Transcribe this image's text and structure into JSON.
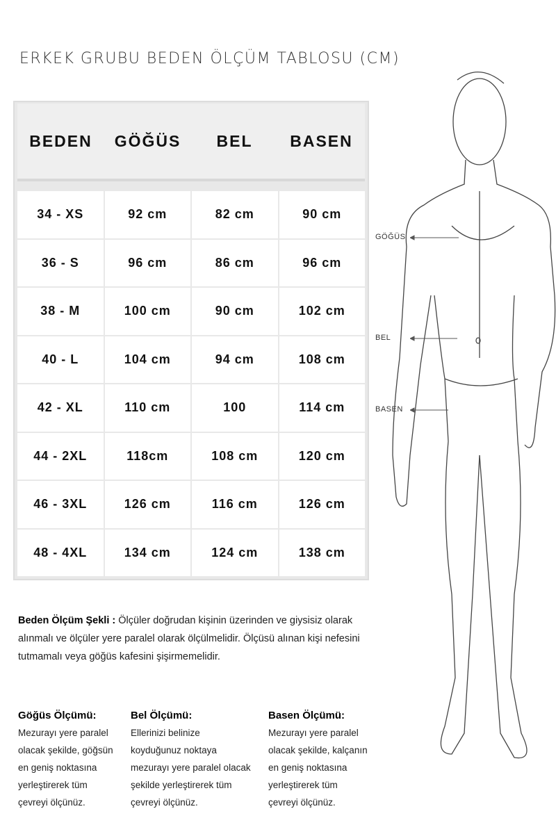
{
  "title": "ERKEK GRUBU BEDEN ÖLÇÜM TABLOSU (CM)",
  "table": {
    "headers": [
      "BEDEN",
      "GÖĞÜS",
      "BEL",
      "BASEN"
    ],
    "rows": [
      [
        "34 - XS",
        "92 cm",
        "82 cm",
        "90 cm"
      ],
      [
        "36 - S",
        "96 cm",
        "86 cm",
        "96 cm"
      ],
      [
        "38 - M",
        "100 cm",
        "90 cm",
        "102 cm"
      ],
      [
        "40 - L",
        "104 cm",
        "94 cm",
        "108 cm"
      ],
      [
        "42 - XL",
        "110 cm",
        "100",
        "114 cm"
      ],
      [
        "44 - 2XL",
        "118cm",
        "108 cm",
        "120 cm"
      ],
      [
        "46 - 3XL",
        "126 cm",
        "116 cm",
        "126 cm"
      ],
      [
        "48 - 4XL",
        "134 cm",
        "124 cm",
        "138 cm"
      ]
    ]
  },
  "description": {
    "label": "Beden Ölçüm Şekli :",
    "text": "Ölçüler doğrudan kişinin üzerinden ve giysisiz olarak alınmalı ve ölçüler yere paralel olarak ölçülmelidir. Ölçüsü alınan kişi nefesini tutmamalı veya göğüs kafesini şişirmemelidir."
  },
  "instructions": [
    {
      "title": "Göğüs Ölçümü:",
      "text": "Mezurayı yere paralel olacak şekilde, göğsün en geniş noktasına yerleştirerek tüm çevreyi ölçünüz."
    },
    {
      "title": "Bel Ölçümü:",
      "text": "Ellerinizi belinize koyduğunuz noktaya mezurayı yere paralel olacak şekilde  yerleştirerek tüm çevreyi ölçünüz."
    },
    {
      "title": "Basen Ölçümü:",
      "text": "Mezurayı yere paralel olacak şekilde, kalçanın en geniş noktasına yerleştirerek tüm çevreyi ölçünüz."
    }
  ],
  "figure_labels": {
    "chest": "GÖĞÜS",
    "waist": "BEL",
    "hip": "BASEN"
  }
}
